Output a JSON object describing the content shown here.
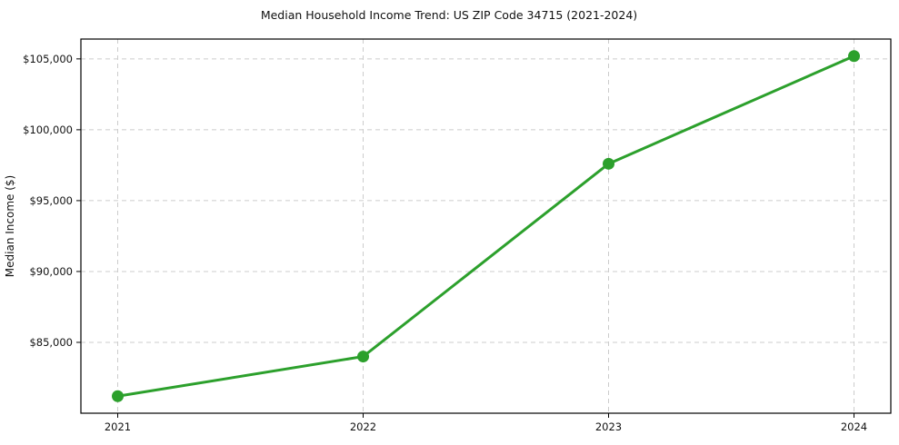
{
  "figure": {
    "background": "#ffffff"
  },
  "chart_data": {
    "type": "line",
    "title": "Median Household Income Trend: US ZIP Code 34715 (2021-2024)",
    "xlabel": "",
    "ylabel": "Median Income ($)",
    "x": [
      2021,
      2022,
      2023,
      2024
    ],
    "series": [
      {
        "name": "Median Household Income",
        "values": [
          81200,
          84000,
          97600,
          105200
        ],
        "color": "#2ca02c",
        "marker": "circle",
        "marker_size": 6.5,
        "line_width": 3
      }
    ],
    "xlim": [
      2020.85,
      2024.15
    ],
    "ylim": [
      80000,
      106400
    ],
    "xticks": [
      2021,
      2022,
      2023,
      2024
    ],
    "xtick_labels": [
      "2021",
      "2022",
      "2023",
      "2024"
    ],
    "yticks": [
      85000,
      90000,
      95000,
      100000,
      105000
    ],
    "ytick_labels": [
      "$85,000",
      "$90,000",
      "$95,000",
      "$100,000",
      "$105,000"
    ],
    "grid": true,
    "grid_style": "dashed",
    "legend": false,
    "colors": {
      "line": "#2ca02c",
      "grid": "#cccccc",
      "spine": "#000000",
      "text": "#111111",
      "background": "#ffffff"
    }
  }
}
